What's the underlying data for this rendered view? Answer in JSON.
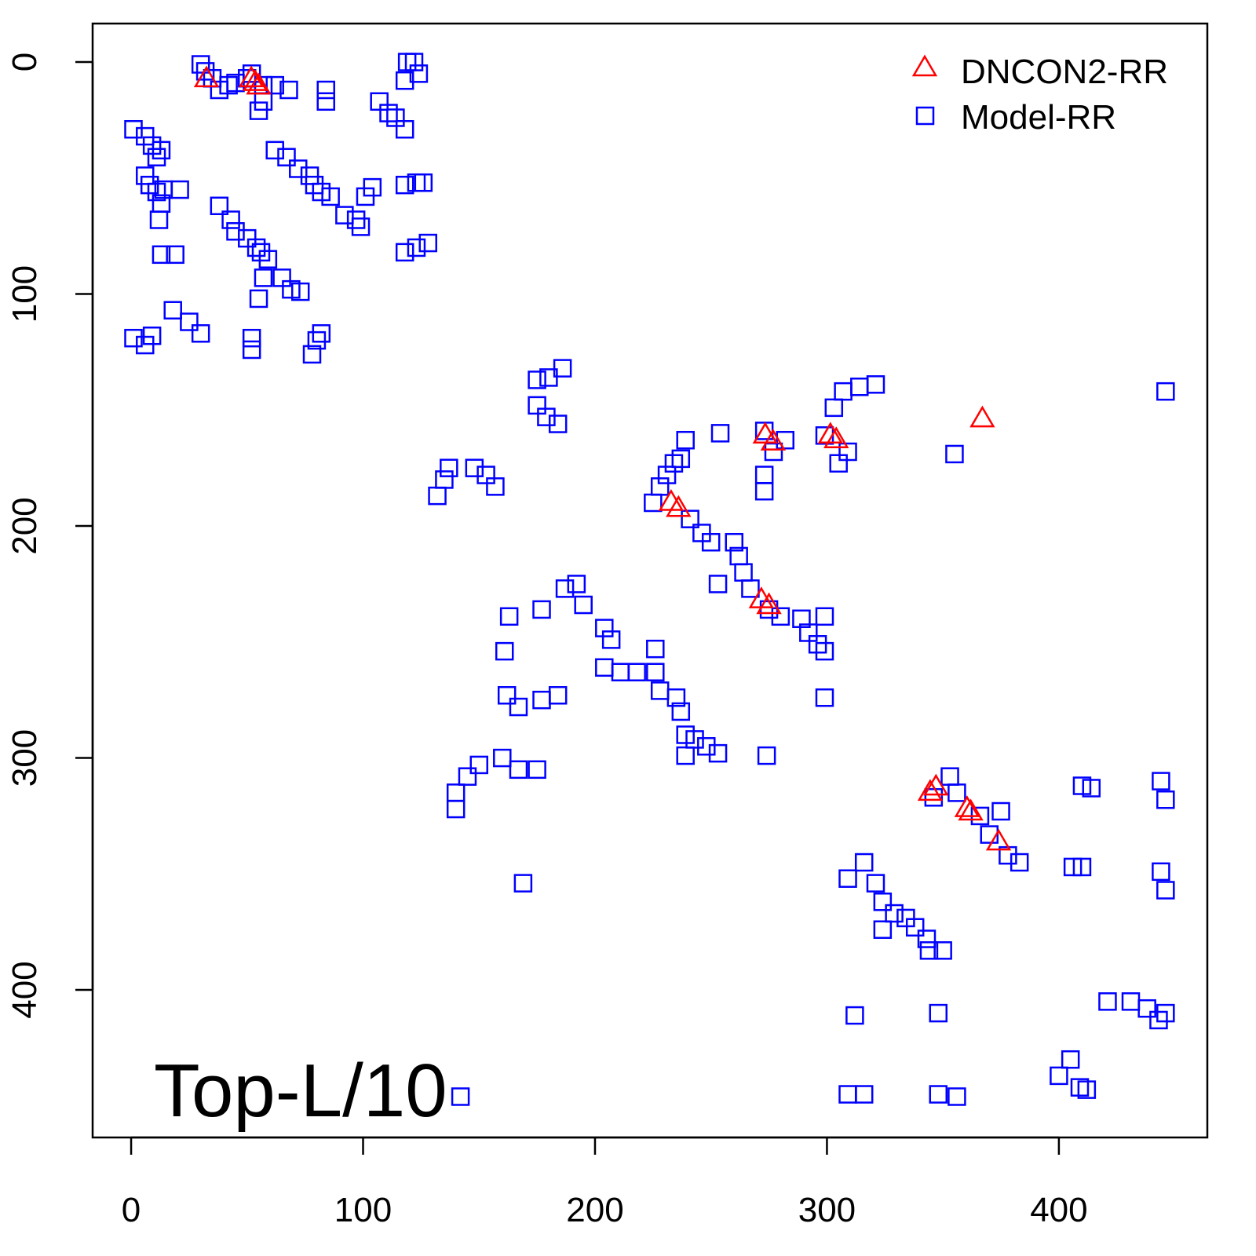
{
  "chart_data": {
    "type": "scatter",
    "title": "",
    "annotation": "Top-L/10",
    "xlabel": "",
    "ylabel": "",
    "xlim": [
      -16.6,
      464
    ],
    "ylim": [
      463.6,
      -16.6
    ],
    "y_reversed": true,
    "grid": false,
    "legend_position": "top-right",
    "x_ticks": [
      0,
      100,
      200,
      300,
      400
    ],
    "y_ticks": [
      0,
      100,
      200,
      300,
      400
    ],
    "x_tick_labels": [
      "0",
      "100",
      "200",
      "300",
      "400"
    ],
    "y_tick_labels": [
      "0",
      "100",
      "200",
      "300",
      "400"
    ],
    "series": [
      {
        "name": "DNCON2-RR",
        "marker": "triangle",
        "color": "#FF0000",
        "points": [
          [
            32.5,
            7.4
          ],
          [
            51.8,
            7.4
          ],
          [
            53.5,
            9
          ],
          [
            55,
            10.5
          ],
          [
            273.4,
            161
          ],
          [
            276.8,
            164
          ],
          [
            301.5,
            161
          ],
          [
            304,
            163
          ],
          [
            367,
            154
          ],
          [
            232.8,
            190
          ],
          [
            236,
            192.6
          ],
          [
            271.7,
            232
          ],
          [
            275,
            234.5
          ],
          [
            344.5,
            315
          ],
          [
            347,
            312.7
          ],
          [
            360.4,
            322
          ],
          [
            362,
            323.5
          ],
          [
            374,
            336.4
          ]
        ]
      },
      {
        "name": "Model-RR",
        "marker": "square",
        "color": "#0000FF",
        "points": [
          [
            30,
            1
          ],
          [
            32,
            4
          ],
          [
            35,
            7
          ],
          [
            38,
            12
          ],
          [
            42,
            10
          ],
          [
            45,
            9
          ],
          [
            50,
            7
          ],
          [
            52,
            5
          ],
          [
            57,
            10
          ],
          [
            62,
            10
          ],
          [
            68,
            12
          ],
          [
            55,
            21
          ],
          [
            57,
            17
          ],
          [
            84,
            12
          ],
          [
            84,
            17
          ],
          [
            107,
            17
          ],
          [
            111,
            22
          ],
          [
            114,
            24
          ],
          [
            118,
            29
          ],
          [
            119,
            0
          ],
          [
            122,
            0
          ],
          [
            118,
            8
          ],
          [
            124,
            5
          ],
          [
            1,
            29
          ],
          [
            6,
            32
          ],
          [
            9,
            36
          ],
          [
            13,
            38
          ],
          [
            11,
            41
          ],
          [
            6,
            49
          ],
          [
            8,
            53
          ],
          [
            11,
            56
          ],
          [
            14,
            55
          ],
          [
            21,
            55
          ],
          [
            13,
            61
          ],
          [
            12,
            68
          ],
          [
            13,
            83
          ],
          [
            19,
            83
          ],
          [
            62,
            38
          ],
          [
            67,
            41
          ],
          [
            72,
            46
          ],
          [
            77,
            49
          ],
          [
            79,
            53
          ],
          [
            82,
            56
          ],
          [
            86,
            58
          ],
          [
            92,
            66
          ],
          [
            97,
            68
          ],
          [
            99,
            71
          ],
          [
            104,
            54
          ],
          [
            101,
            58
          ],
          [
            38,
            62
          ],
          [
            43,
            68
          ],
          [
            45,
            73
          ],
          [
            50,
            76
          ],
          [
            54,
            80
          ],
          [
            56,
            82
          ],
          [
            59,
            85
          ],
          [
            57,
            93
          ],
          [
            55,
            102
          ],
          [
            65,
            93
          ],
          [
            69,
            98
          ],
          [
            73,
            99
          ],
          [
            118,
            53
          ],
          [
            123,
            52
          ],
          [
            126,
            52
          ],
          [
            118,
            82
          ],
          [
            123,
            80
          ],
          [
            128,
            78
          ],
          [
            1,
            119
          ],
          [
            6,
            122
          ],
          [
            9,
            118
          ],
          [
            18,
            107
          ],
          [
            25,
            112
          ],
          [
            30,
            117
          ],
          [
            52,
            119
          ],
          [
            52,
            124
          ],
          [
            78,
            126
          ],
          [
            80,
            120
          ],
          [
            82,
            117
          ],
          [
            175,
            137
          ],
          [
            180,
            136
          ],
          [
            186,
            132
          ],
          [
            175,
            148
          ],
          [
            179,
            153
          ],
          [
            184,
            156
          ],
          [
            132,
            187
          ],
          [
            135,
            180
          ],
          [
            137,
            175
          ],
          [
            148,
            175
          ],
          [
            153,
            178
          ],
          [
            157,
            183
          ],
          [
            225,
            190
          ],
          [
            228,
            183
          ],
          [
            231,
            178
          ],
          [
            234,
            173
          ],
          [
            237,
            171
          ],
          [
            239,
            163
          ],
          [
            254,
            160
          ],
          [
            241,
            197
          ],
          [
            246,
            203
          ],
          [
            250,
            207
          ],
          [
            253,
            225
          ],
          [
            260,
            207
          ],
          [
            262,
            213
          ],
          [
            264,
            220
          ],
          [
            267,
            227
          ],
          [
            273,
            159
          ],
          [
            277,
            168
          ],
          [
            273,
            178
          ],
          [
            273,
            185
          ],
          [
            282,
            163
          ],
          [
            299,
            161
          ],
          [
            303,
            149
          ],
          [
            307,
            142
          ],
          [
            314,
            140
          ],
          [
            321,
            139
          ],
          [
            305,
            173
          ],
          [
            309,
            168
          ],
          [
            446,
            142
          ],
          [
            355,
            169
          ],
          [
            275,
            236
          ],
          [
            280,
            239
          ],
          [
            289,
            240
          ],
          [
            292,
            246
          ],
          [
            296,
            251
          ],
          [
            299,
            254
          ],
          [
            299,
            239
          ],
          [
            299,
            274
          ],
          [
            187,
            227
          ],
          [
            192,
            225
          ],
          [
            195,
            234
          ],
          [
            204,
            244
          ],
          [
            207,
            249
          ],
          [
            177,
            236
          ],
          [
            163,
            239
          ],
          [
            161,
            254
          ],
          [
            204,
            261
          ],
          [
            211,
            263
          ],
          [
            218,
            263
          ],
          [
            226,
            263
          ],
          [
            226,
            253
          ],
          [
            228,
            271
          ],
          [
            235,
            274
          ],
          [
            237,
            280
          ],
          [
            239,
            290
          ],
          [
            243,
            292
          ],
          [
            248,
            295
          ],
          [
            253,
            298
          ],
          [
            239,
            299
          ],
          [
            274,
            299
          ],
          [
            162,
            273
          ],
          [
            167,
            278
          ],
          [
            177,
            275
          ],
          [
            184,
            273
          ],
          [
            140,
            315
          ],
          [
            140,
            322
          ],
          [
            145,
            308
          ],
          [
            150,
            303
          ],
          [
            160,
            300
          ],
          [
            167,
            305
          ],
          [
            175,
            305
          ],
          [
            169,
            354
          ],
          [
            346,
            317
          ],
          [
            353,
            308
          ],
          [
            356,
            315
          ],
          [
            366,
            325
          ],
          [
            370,
            333
          ],
          [
            375,
            323
          ],
          [
            378,
            342
          ],
          [
            383,
            345
          ],
          [
            309,
            352
          ],
          [
            316,
            345
          ],
          [
            321,
            354
          ],
          [
            324,
            362
          ],
          [
            329,
            367
          ],
          [
            324,
            374
          ],
          [
            334,
            369
          ],
          [
            338,
            373
          ],
          [
            343,
            378
          ],
          [
            344,
            383
          ],
          [
            350,
            383
          ],
          [
            312,
            411
          ],
          [
            348,
            410
          ],
          [
            309,
            445
          ],
          [
            316,
            445
          ],
          [
            348,
            445
          ],
          [
            356,
            446
          ],
          [
            409,
            442
          ],
          [
            405,
            430
          ],
          [
            400,
            437
          ],
          [
            412,
            443
          ],
          [
            410,
            312
          ],
          [
            414,
            313
          ],
          [
            444,
            310
          ],
          [
            446,
            318
          ],
          [
            410,
            347
          ],
          [
            406,
            347
          ],
          [
            444,
            349
          ],
          [
            446,
            357
          ],
          [
            431,
            405
          ],
          [
            438,
            408
          ],
          [
            443,
            413
          ],
          [
            446,
            410
          ],
          [
            421,
            405
          ],
          [
            142,
            446
          ]
        ]
      }
    ]
  }
}
